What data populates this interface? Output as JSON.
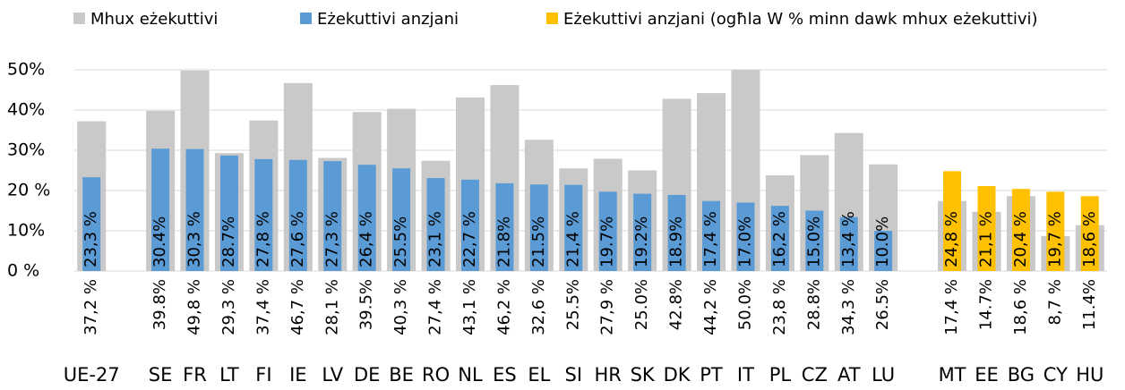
{
  "chart_data": {
    "type": "bar",
    "categories": [
      "UE-27",
      null,
      "SE",
      "FR",
      "LT",
      "FI",
      "IE",
      "LV",
      "DE",
      "BE",
      "RO",
      "NL",
      "ES",
      "EL",
      "SI",
      "HR",
      "SK",
      "DK",
      "PT",
      "IT",
      "PL",
      "CZ",
      "AT",
      "LU",
      null,
      "MT",
      "EE",
      "BG",
      "CY",
      "HU"
    ],
    "series": [
      {
        "name": "Mhux eżekuttivi",
        "color": "#c9c9c9",
        "values": [
          37.2,
          null,
          39.8,
          49.8,
          29.3,
          37.4,
          46.7,
          28.1,
          39.5,
          40.3,
          27.4,
          43.1,
          46.2,
          32.6,
          25.5,
          27.9,
          25.0,
          42.8,
          44.2,
          50.0,
          23.8,
          28.8,
          34.3,
          26.5,
          null,
          17.4,
          14.7,
          18.6,
          8.7,
          11.4
        ],
        "value_labels": [
          "37,2 %",
          null,
          "39.8%",
          "49,8 %",
          "29,3 %",
          "37,4 %",
          "46,7 %",
          "28,1 %",
          "39.5%",
          "40,3 %",
          "27,4 %",
          "43,1 %",
          "46,2 %",
          "32,6 %",
          "25.5%",
          "27,9 %",
          "25.0%",
          "42.8%",
          "44,2 %",
          "50.0%",
          "23,8 %",
          "28.8%",
          "34,3 %",
          "26.5%",
          null,
          "17,4 %",
          "14.7%",
          "18,6 %",
          "8,7 %",
          "11.4%"
        ]
      },
      {
        "name": "Eżekuttivi anzjani",
        "color": "#5b9bd5",
        "values": [
          23.3,
          null,
          30.4,
          30.3,
          28.7,
          27.8,
          27.6,
          27.3,
          26.4,
          25.5,
          23.1,
          22.7,
          21.8,
          21.5,
          21.4,
          19.7,
          19.2,
          18.9,
          17.4,
          17.0,
          16.2,
          15.0,
          13.4,
          10.0,
          null,
          null,
          null,
          null,
          null,
          null
        ],
        "value_labels": [
          "23,3 %",
          null,
          "30.4%",
          "30,3 %",
          "28.7%",
          "27,8 %",
          "27,6 %",
          "27,3 %",
          "26,4 %",
          "25.5%",
          "23,1 %",
          "22,7 %",
          "21.8%",
          "21.5%",
          "21,4 %",
          "19.7%",
          "19.2%",
          "18.9%",
          "17,4 %",
          "17.0%",
          "16,2 %",
          "15.0%",
          "13,4 %",
          "10.0%",
          null,
          null,
          null,
          null,
          null,
          null
        ]
      },
      {
        "name": "Eżekuttivi anzjani (ogħla W % minn dawk mhux eżekuttivi)",
        "color": "#ffc000",
        "values": [
          null,
          null,
          null,
          null,
          null,
          null,
          null,
          null,
          null,
          null,
          null,
          null,
          null,
          null,
          null,
          null,
          null,
          null,
          null,
          null,
          null,
          null,
          null,
          null,
          null,
          24.8,
          21.1,
          20.4,
          19.7,
          18.6
        ],
        "value_labels": [
          null,
          null,
          null,
          null,
          null,
          null,
          null,
          null,
          null,
          null,
          null,
          null,
          null,
          null,
          null,
          null,
          null,
          null,
          null,
          null,
          null,
          null,
          null,
          null,
          null,
          "24,8 %",
          "21,1 %",
          "20,4 %",
          "19,7 %",
          "18,6 %"
        ]
      }
    ],
    "ylim": [
      0,
      50
    ],
    "yticks": [
      {
        "value": 0,
        "label": "0 %"
      },
      {
        "value": 10,
        "label": "10%"
      },
      {
        "value": 20,
        "label": "20 %"
      },
      {
        "value": 30,
        "label": "30%"
      },
      {
        "value": 40,
        "label": "40%"
      },
      {
        "value": 50,
        "label": "50%"
      }
    ],
    "grid": true
  }
}
